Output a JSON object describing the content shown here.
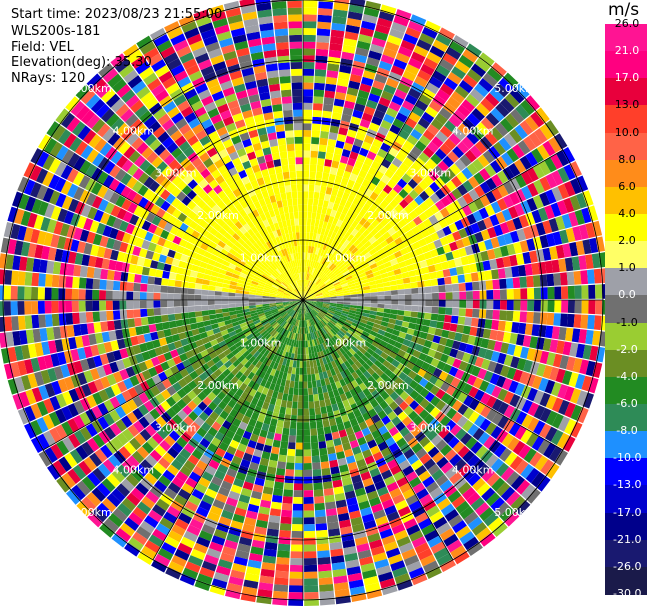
{
  "header": {
    "start_time": "Start time: 2023/08/23 21:55:00",
    "instrument": "WLS200s-181",
    "field": "Field: VEL",
    "elevation": "Elevation(deg): 35.30",
    "nrays": "NRays: 120"
  },
  "colorbar": {
    "unit": "m/s",
    "ticks": [
      "26.0",
      "21.0",
      "17.0",
      "13.0",
      "10.0",
      "8.0",
      "6.0",
      "4.0",
      "2.0",
      "1.0",
      "0.0",
      "-1.0",
      "-2.0",
      "-4.0",
      "-6.0",
      "-8.0",
      "-10.0",
      "-13.0",
      "-17.0",
      "-21.0",
      "-26.0",
      "-30.0"
    ],
    "colors": [
      "#ff1493",
      "#ff0080",
      "#e8003c",
      "#ff3f2a",
      "#ff6347",
      "#ff8c1a",
      "#ffc000",
      "#ffff00",
      "#ffff66",
      "#9ea0a8",
      "#707070",
      "#9acd32",
      "#6b8e23",
      "#228b22",
      "#2e8b57",
      "#1e90ff",
      "#0000ff",
      "#0000cd",
      "#00008b",
      "#191970",
      "#1a1a4a",
      "#0c0c30"
    ]
  },
  "chart_data": {
    "type": "heatmap",
    "title": "",
    "field": "VEL",
    "units": "m/s",
    "rings": [
      "1.00km",
      "2.00km",
      "3.00km",
      "4.00km",
      "5.00km"
    ],
    "vmin": -30.0,
    "vmax": 26.0,
    "nrays": 120,
    "pattern": {
      "north_near": "2.0 to 4.0 m/s",
      "south_near": "-2.0 to -6.0 m/s",
      "east_west_near": "~0.0 m/s",
      "far_range": "noise"
    }
  }
}
